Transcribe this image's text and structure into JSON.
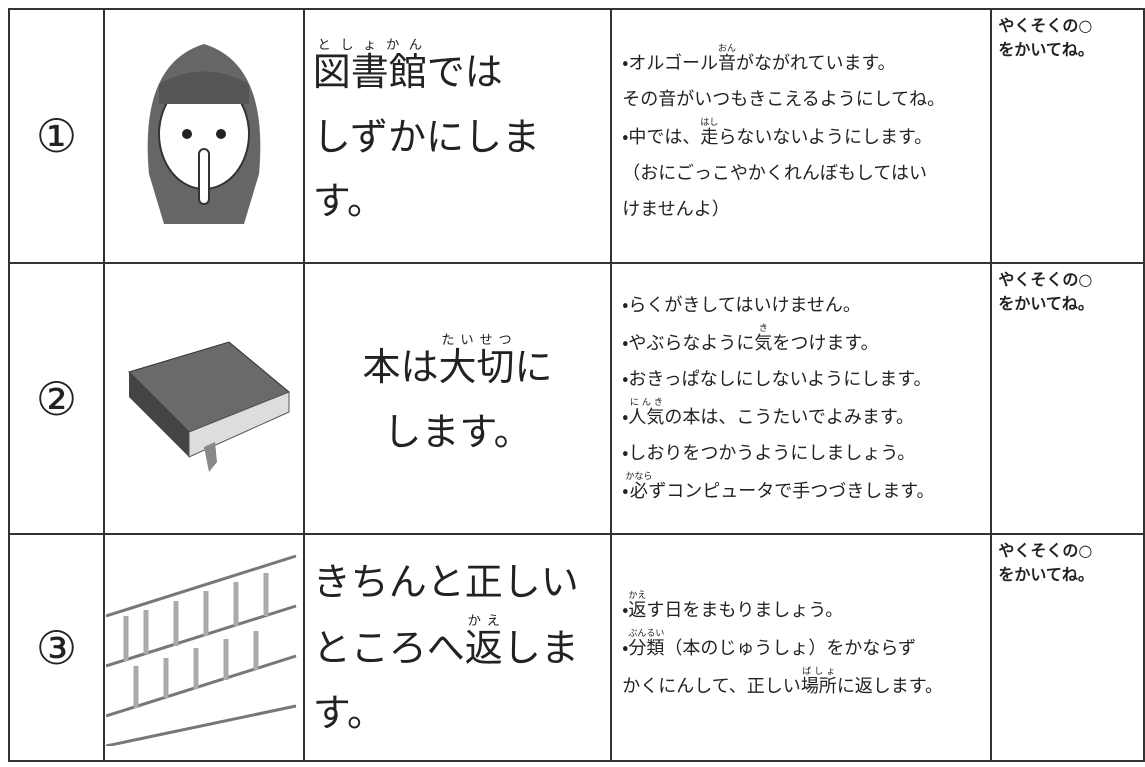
{
  "rows": [
    {
      "number": "①",
      "heading": [
        [
          {
            "text": "図書館",
            "ruby": "としょかん"
          },
          {
            "text": "では"
          }
        ],
        [
          {
            "text": "しずかにします。"
          }
        ]
      ],
      "notes": [
        [
          {
            "text": "・オルゴール"
          },
          {
            "text": "音",
            "ruby": "おん"
          },
          {
            "text": "がながれています。"
          }
        ],
        [
          {
            "text": "その音がいつもきこえるようにしてね。"
          }
        ],
        [
          {
            "text": "・中では、"
          },
          {
            "text": "走",
            "ruby": "はし"
          },
          {
            "text": "らないないようにします。"
          }
        ],
        [
          {
            "text": "（おにごっこやかくれんぼもしてはい"
          }
        ],
        [
          {
            "text": "けませんよ）"
          }
        ]
      ],
      "promise": [
        "やくそくの○",
        "をかいてね。"
      ]
    },
    {
      "number": "②",
      "heading": [
        [
          {
            "text": "本は"
          },
          {
            "text": "大切",
            "ruby": "たいせつ"
          },
          {
            "text": "に"
          }
        ],
        [
          {
            "text": "します。"
          }
        ]
      ],
      "notes": [
        [
          {
            "text": "・らくがきしてはいけません。"
          }
        ],
        [
          {
            "text": "・やぶらなように"
          },
          {
            "text": "気",
            "ruby": "き"
          },
          {
            "text": "をつけます。"
          }
        ],
        [
          {
            "text": "・おきっぱなしにしないようにします。"
          }
        ],
        [
          {
            "text": "・"
          },
          {
            "text": "人気",
            "ruby": "にんき"
          },
          {
            "text": "の本は、こうたいでよみます。"
          }
        ],
        [
          {
            "text": "・しおりをつかうようにしましょう。"
          }
        ],
        [
          {
            "text": "・"
          },
          {
            "text": "必",
            "ruby": "かなら"
          },
          {
            "text": "ずコンピュータで手つづきします。"
          }
        ]
      ],
      "promise": [
        "やくそくの○",
        "をかいてね。"
      ]
    },
    {
      "number": "③",
      "heading": [
        [
          {
            "text": "きちんと正しい"
          }
        ],
        [
          {
            "text": "ところへ"
          },
          {
            "text": "返",
            "ruby": "かえ"
          },
          {
            "text": "します。"
          }
        ]
      ],
      "notes": [
        [
          {
            "text": "・"
          },
          {
            "text": "返",
            "ruby": "かえ"
          },
          {
            "text": "す日をまもりましょう。"
          }
        ],
        [
          {
            "text": "・"
          },
          {
            "text": "分類",
            "ruby": "ぶんるい"
          },
          {
            "text": "（本のじゅうしょ）をかならず"
          }
        ],
        [
          {
            "text": "かくにんして、正しい"
          },
          {
            "text": "場所",
            "ruby": "ばしょ"
          },
          {
            "text": "に返します。"
          }
        ]
      ],
      "promise": [
        "やくそくの○",
        "をかいてね。"
      ]
    }
  ]
}
